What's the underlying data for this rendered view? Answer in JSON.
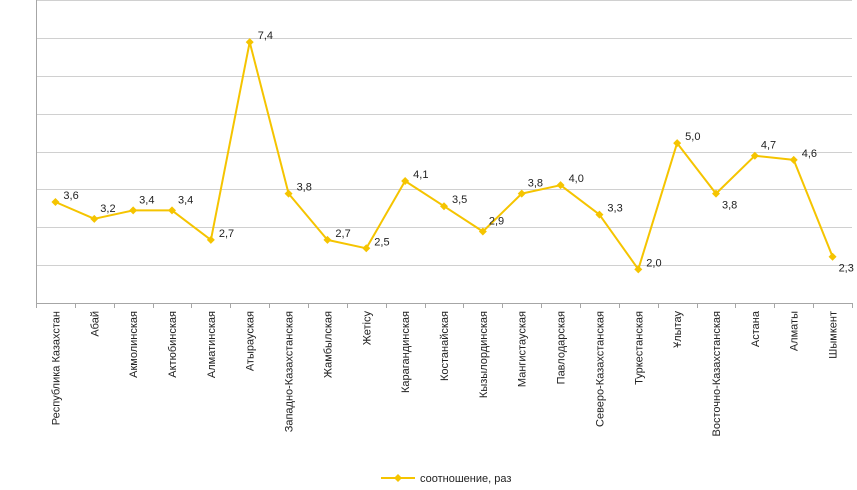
{
  "chart_data": {
    "type": "line",
    "categories": [
      "Республика Казахстан",
      "Абай",
      "Акмолинская",
      "Актюбинская",
      "Алматинская",
      "Атырауская",
      "Западно-Казахстанская",
      "Жамбылская",
      "Жетісу",
      "Карагандинская",
      "Костанайская",
      "Кызылординская",
      "Мангистауская",
      "Павлодарская",
      "Северо-Казахстанская",
      "Туркестанская",
      "Ұлытау",
      "Восточно-Казахстанская",
      "Астана",
      "Алматы",
      "Шымкент"
    ],
    "series": [
      {
        "name": "соотношение, раз",
        "values": [
          3.6,
          3.2,
          3.4,
          3.4,
          2.7,
          7.4,
          3.8,
          2.7,
          2.5,
          4.1,
          3.5,
          2.9,
          3.8,
          4.0,
          3.3,
          2.0,
          5.0,
          3.8,
          4.7,
          4.6,
          2.3
        ],
        "labels": [
          "3,6",
          "3,2",
          "3,4",
          "3,4",
          "2,7",
          "7,4",
          "3,8",
          "2,7",
          "2,5",
          "4,1",
          "3,5",
          "2,9",
          "3,8",
          "4,0",
          "3,3",
          "2,0",
          "5,0",
          "3,8",
          "4,7",
          "4,6",
          "2,3"
        ],
        "label_side": [
          "right",
          "above",
          "above",
          "above",
          "right",
          "right",
          "right",
          "right",
          "right",
          "right",
          "right",
          "above",
          "above",
          "right",
          "right",
          "right",
          "right",
          "below",
          "above",
          "right",
          "below"
        ]
      }
    ],
    "ylim": [
      1.2,
      8.4
    ],
    "y_grid_step": 0.9,
    "grid": true,
    "y_tick_labels_shown": false,
    "legend_position": "bottom",
    "colors": {
      "series": "#f5c400",
      "grid": "#d0d0d0",
      "axis": "#a6a6a6"
    }
  }
}
